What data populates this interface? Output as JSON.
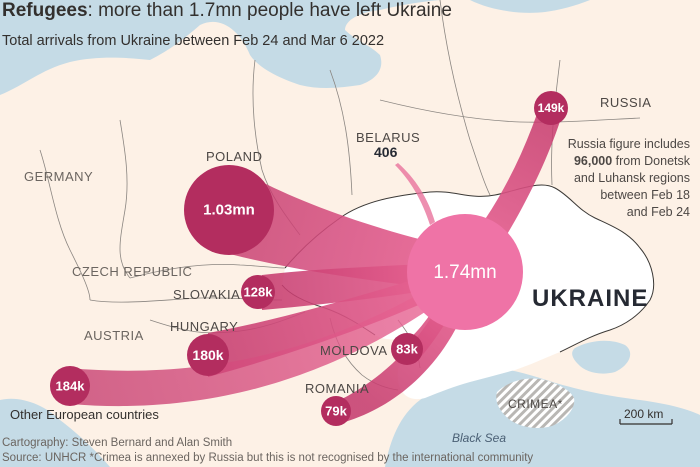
{
  "title_bold": "Refugees",
  "title_rest": ": more than 1.7mn people have left Ukraine",
  "subtitle": "Total arrivals from Ukraine between Feb 24 and Mar 6 2022",
  "labels": {
    "germany": "GERMANY",
    "poland": "POLAND",
    "czech": "CZECH REPUBLIC",
    "austria": "AUSTRIA",
    "slovakia": "SLOVAKIA",
    "hungary": "HUNGARY",
    "moldova": "MOLDOVA",
    "romania": "ROMANIA",
    "belarus": "BELARUS",
    "russia": "RUSSIA",
    "ukraine": "UKRAINE",
    "crimea": "CRIMEA*",
    "black_sea": "Black Sea",
    "other_europe": "Other European countries"
  },
  "values": {
    "ukraine_total": "1.74mn",
    "poland": "1.03mn",
    "slovakia": "128k",
    "hungary": "180k",
    "moldova": "83k",
    "romania": "79k",
    "other_europe": "184k",
    "russia": "149k",
    "belarus": "406"
  },
  "russia_note": {
    "line1": "Russia figure includes",
    "line2_bold": "96,000",
    "line2_rest": " from Donetsk",
    "line3": "and Luhansk regions",
    "line4": "between Feb 18",
    "line5": "and Feb 24"
  },
  "scale_label": "200 km",
  "footer": {
    "credit": "Cartography: Steven Bernard and Alan Smith",
    "source": "Source: UNHCR   *Crimea is annexed by Russia but this is not recognised by the international community"
  },
  "colors": {
    "background": "#fdf1e6",
    "water": "#c5dbe6",
    "ukraine_fill": "#ffffff",
    "origin_bubble": "#ef73a6",
    "destination_bubble": "#b32d5f",
    "flow": "#e8739c"
  }
}
